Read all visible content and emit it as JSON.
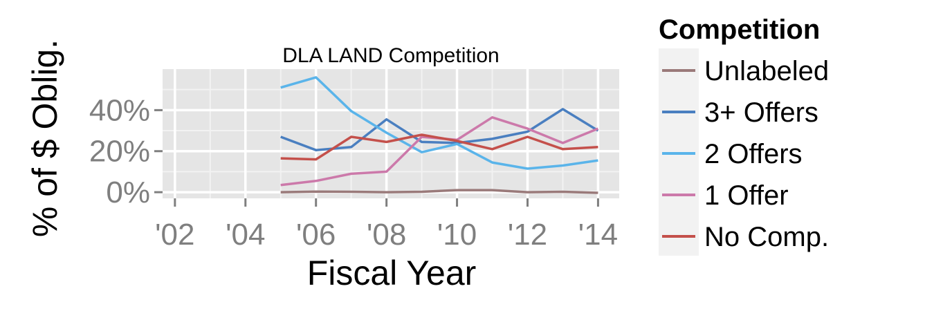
{
  "chart_data": {
    "type": "line",
    "title": "DLA LAND Competition",
    "xlabel": "Fiscal Year",
    "ylabel": "% of $ Oblig.",
    "xlim": [
      2001.65,
      2014.6
    ],
    "ylim": [
      -0.03,
      0.6
    ],
    "x_ticks": [
      2002,
      2004,
      2006,
      2008,
      2010,
      2012,
      2014
    ],
    "x_tick_labels": [
      "'02",
      "'04",
      "'06",
      "'08",
      "'10",
      "'12",
      "'14"
    ],
    "y_ticks": [
      0,
      0.2,
      0.4
    ],
    "y_tick_labels": [
      "0%",
      "20%",
      "40%"
    ],
    "grid": true,
    "legend": {
      "title": "Competition",
      "position": "right"
    },
    "x": [
      2005,
      2006,
      2007,
      2008,
      2009,
      2010,
      2011,
      2012,
      2013,
      2014
    ],
    "series": [
      {
        "name": "Unlabeled",
        "color": "#9a7a7a",
        "values": [
          0.0,
          0.003,
          0.002,
          0.0,
          0.002,
          0.01,
          0.01,
          0.0,
          0.002,
          -0.003
        ]
      },
      {
        "name": "3+ Offers",
        "color": "#4a7fc0",
        "values": [
          0.27,
          0.205,
          0.22,
          0.355,
          0.245,
          0.24,
          0.26,
          0.295,
          0.405,
          0.3
        ]
      },
      {
        "name": "2 Offers",
        "color": "#5ab4ea",
        "values": [
          0.51,
          0.56,
          0.395,
          0.29,
          0.195,
          0.235,
          0.145,
          0.115,
          0.13,
          0.155
        ]
      },
      {
        "name": "1 Offer",
        "color": "#cc79aa",
        "values": [
          0.035,
          0.055,
          0.09,
          0.1,
          0.27,
          0.255,
          0.365,
          0.31,
          0.24,
          0.31
        ]
      },
      {
        "name": "No Comp.",
        "color": "#c4504b",
        "values": [
          0.165,
          0.16,
          0.27,
          0.245,
          0.28,
          0.25,
          0.21,
          0.27,
          0.21,
          0.22
        ]
      }
    ]
  }
}
